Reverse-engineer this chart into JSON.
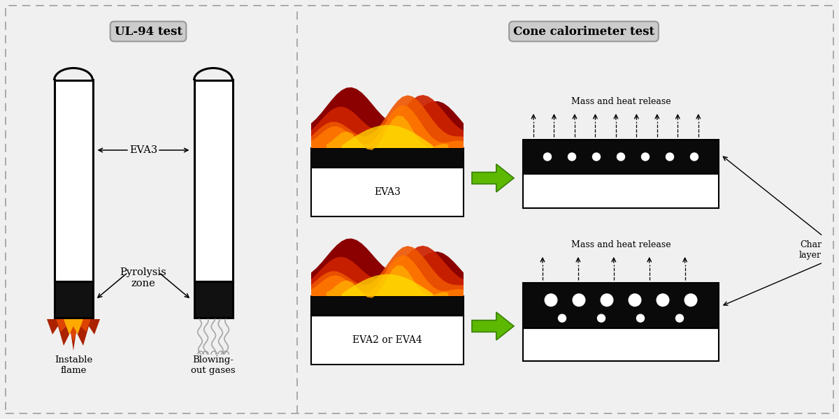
{
  "bg_color": "#f0f0f0",
  "title_ul94": "UL-94 test",
  "title_cone": "Cone calorimeter test",
  "label_eva3": "EVA3",
  "label_pyrolysis": "Pyrolysis\nzone",
  "label_instable": "Instable\nflame",
  "label_blowing": "Blowing-\nout gases",
  "label_eva3_box": "EVA3",
  "label_eva24_box": "EVA2 or EVA4",
  "label_mass_heat1": "Mass and heat release",
  "label_mass_heat2": "Mass and heat release",
  "label_char": "Char\nlayer",
  "green_arrow": "#5cb800",
  "green_arrow_edge": "#3a8000",
  "char_black": "#0a0a0a",
  "border_dash": "#aaaaaa"
}
